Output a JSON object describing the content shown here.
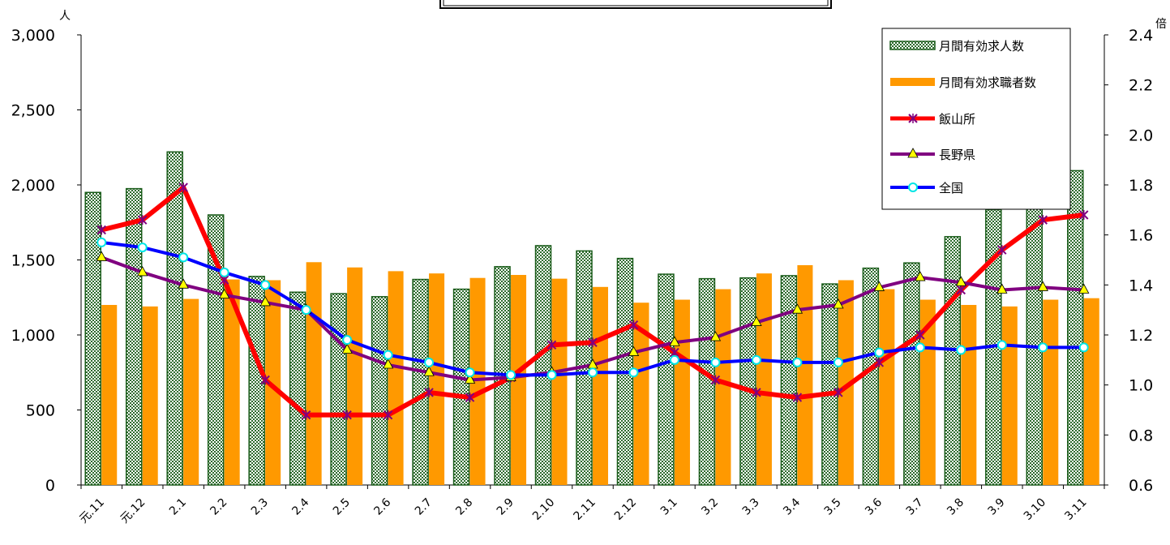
{
  "chart_data": {
    "type": "bar",
    "y_left_unit": "人",
    "y_right_unit": "倍",
    "ylim_left": [
      0,
      3000
    ],
    "ylim_right": [
      0.6,
      2.4
    ],
    "y_left_ticks": [
      "0",
      "500",
      "1,000",
      "1,500",
      "2,000",
      "2,500",
      "3,000"
    ],
    "y_left_tick_values": [
      0,
      500,
      1000,
      1500,
      2000,
      2500,
      3000
    ],
    "y_right_ticks": [
      "0.6",
      "0.8",
      "1.0",
      "1.2",
      "1.4",
      "1.6",
      "1.8",
      "2.0",
      "2.2",
      "2.4"
    ],
    "y_right_tick_values": [
      0.6,
      0.8,
      1.0,
      1.2,
      1.4,
      1.6,
      1.8,
      2.0,
      2.2,
      2.4
    ],
    "categories": [
      "元.11",
      "元.12",
      "2.1",
      "2.2",
      "2.3",
      "2.4",
      "2.5",
      "2.6",
      "2.7",
      "2.8",
      "2.9",
      "2.10",
      "2.11",
      "2.12",
      "3.1",
      "3.2",
      "3.3",
      "3.4",
      "3.5",
      "3.6",
      "3.7",
      "3.8",
      "3.9",
      "3.10",
      "3.11"
    ],
    "bar_series": [
      {
        "name": "月間有効求人数",
        "axis": "left",
        "color": "#1a5c1a",
        "pattern": "checker",
        "values": [
          1950,
          1975,
          2220,
          1800,
          1390,
          1285,
          1275,
          1255,
          1370,
          1305,
          1455,
          1595,
          1560,
          1510,
          1405,
          1375,
          1380,
          1395,
          1340,
          1445,
          1480,
          1655,
          1835,
          1900,
          2095
        ]
      },
      {
        "name": "月間有効求職者数",
        "axis": "left",
        "color": "#ff9900",
        "values": [
          1200,
          1190,
          1240,
          1370,
          1365,
          1485,
          1450,
          1425,
          1410,
          1380,
          1400,
          1375,
          1320,
          1215,
          1235,
          1305,
          1410,
          1465,
          1365,
          1305,
          1235,
          1200,
          1190,
          1235,
          1245
        ]
      }
    ],
    "line_series": [
      {
        "name": "飯山所",
        "axis": "right",
        "color": "#ff0000",
        "marker_color": "#800080",
        "marker": "x",
        "values": [
          1.62,
          1.66,
          1.79,
          1.42,
          1.02,
          0.88,
          0.88,
          0.88,
          0.97,
          0.95,
          1.03,
          1.16,
          1.17,
          1.24,
          1.13,
          1.02,
          0.97,
          0.95,
          0.97,
          1.09,
          1.2,
          1.38,
          1.54,
          1.66,
          1.68
        ]
      },
      {
        "name": "長野県",
        "axis": "right",
        "color": "#800080",
        "marker_color": "#ffff00",
        "marker": "triangle",
        "values": [
          1.51,
          1.45,
          1.4,
          1.36,
          1.33,
          1.3,
          1.14,
          1.08,
          1.05,
          1.02,
          1.03,
          1.05,
          1.08,
          1.13,
          1.17,
          1.19,
          1.25,
          1.3,
          1.32,
          1.39,
          1.43,
          1.41,
          1.38,
          1.39,
          1.38
        ]
      },
      {
        "name": "全国",
        "axis": "right",
        "color": "#0000ff",
        "marker_color": "#00e5e5",
        "marker": "circle",
        "values": [
          1.57,
          1.55,
          1.51,
          1.45,
          1.4,
          1.3,
          1.18,
          1.12,
          1.09,
          1.05,
          1.04,
          1.04,
          1.05,
          1.05,
          1.1,
          1.09,
          1.1,
          1.09,
          1.09,
          1.13,
          1.15,
          1.14,
          1.16,
          1.15,
          1.15
        ]
      }
    ],
    "legend_position": "top-right",
    "grid": false
  }
}
